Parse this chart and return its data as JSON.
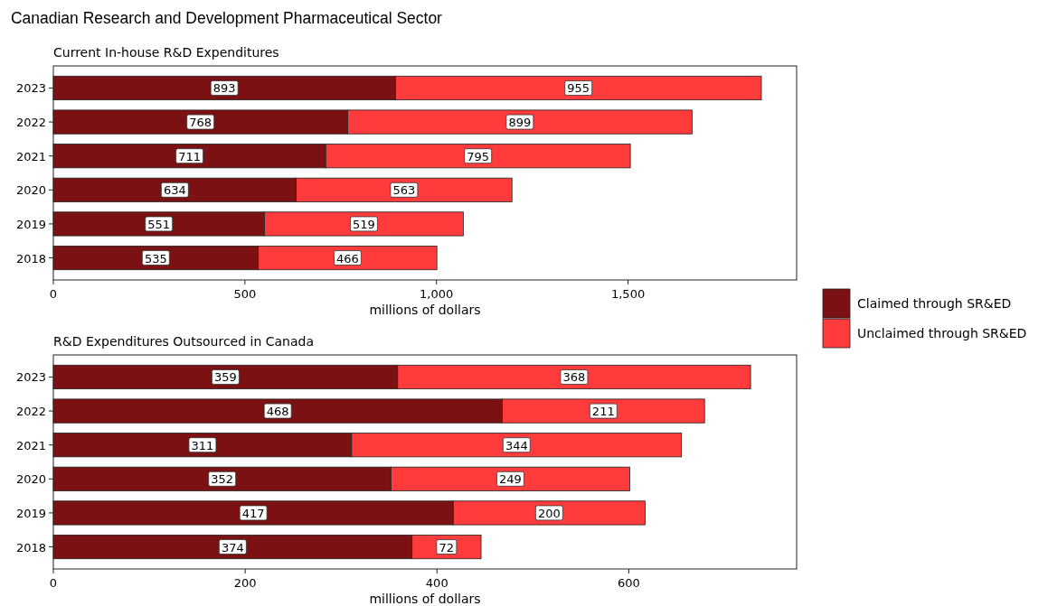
{
  "chart_data": [
    {
      "type": "bar",
      "orientation": "horizontal",
      "stacked": true,
      "title": "Canadian Research and Development Pharmaceutical Sector",
      "subtitle": "Current In-house R&D Expenditures",
      "xlabel": "millions of dollars",
      "categories": [
        "2023",
        "2022",
        "2021",
        "2020",
        "2019",
        "2018"
      ],
      "xlim": [
        0,
        1940
      ],
      "xticks": [
        0,
        500,
        {
          "value": 1000,
          "label": "1,000"
        },
        {
          "value": 1500,
          "label": "1,500"
        }
      ],
      "legend": "right",
      "data_labels": true,
      "series": [
        {
          "name": "Claimed through SR&ED",
          "color": "#7b1113",
          "values": [
            893,
            768,
            711,
            634,
            551,
            535
          ]
        },
        {
          "name": "Unclaimed through SR&ED",
          "color": "#ff3b3b",
          "values": [
            955,
            899,
            795,
            563,
            519,
            466
          ]
        }
      ]
    },
    {
      "type": "bar",
      "orientation": "horizontal",
      "stacked": true,
      "subtitle": "R&D Expenditures Outsourced in Canada",
      "xlabel": "millions of dollars",
      "categories": [
        "2023",
        "2022",
        "2021",
        "2020",
        "2019",
        "2018"
      ],
      "xlim": [
        0,
        775
      ],
      "xticks": [
        0,
        200,
        400,
        600
      ],
      "data_labels": true,
      "series": [
        {
          "color": "#7b1113",
          "values": [
            359,
            468,
            311,
            352,
            417,
            374
          ]
        },
        {
          "color": "#ff3b3b",
          "values": [
            368,
            211,
            344,
            249,
            200,
            72
          ]
        }
      ]
    }
  ]
}
